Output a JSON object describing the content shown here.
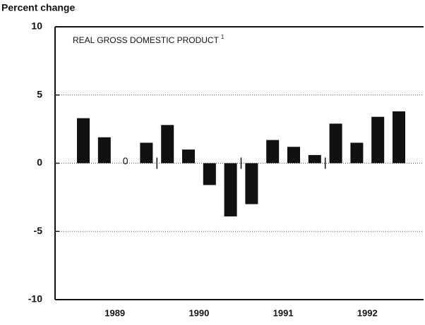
{
  "chart_data": {
    "type": "bar",
    "title": "REAL GROSS DOMESTIC PRODUCT",
    "title_footnote": "1",
    "y_label": "Percent change",
    "categories": [
      null,
      null,
      null,
      null,
      null,
      null,
      null,
      null,
      null,
      null,
      null,
      null,
      null,
      null,
      null,
      null
    ],
    "years": [
      "1989",
      "1990",
      "1991",
      "1992"
    ],
    "values": [
      3.3,
      1.9,
      0,
      1.5,
      2.8,
      1.0,
      -1.6,
      -3.9,
      -3.0,
      1.7,
      1.2,
      0.6,
      2.9,
      1.5,
      3.4,
      3.8
    ],
    "value_labels": [
      null,
      null,
      "0",
      null,
      null,
      null,
      null,
      null,
      null,
      null,
      null,
      null,
      null,
      null,
      null,
      null
    ],
    "color": "#111111",
    "ylim": [
      -10,
      10
    ],
    "yticks": [
      -10,
      -5,
      0,
      5,
      10
    ],
    "grid": true
  }
}
